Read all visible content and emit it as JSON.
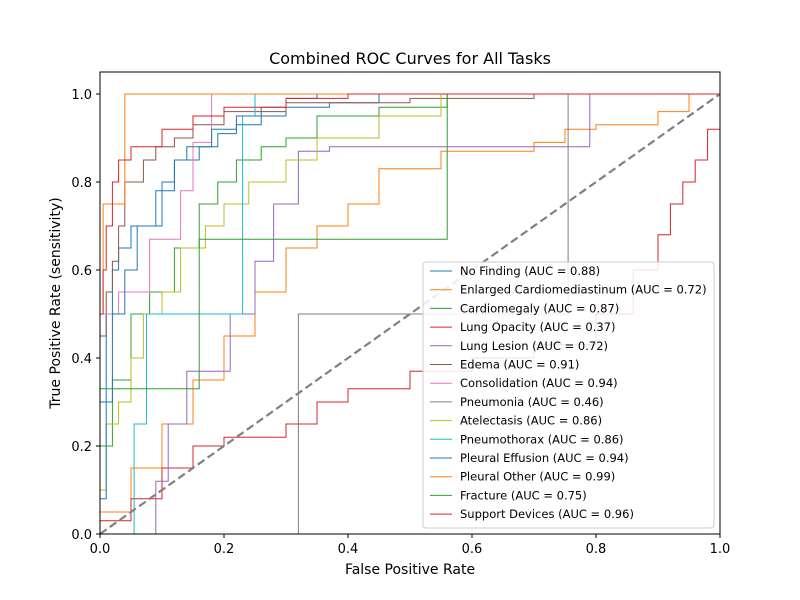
{
  "chart_data": {
    "type": "line",
    "title": "Combined ROC Curves for All Tasks",
    "xlabel": "False Positive Rate",
    "ylabel": "True Positive Rate (sensitivity)",
    "xlim": [
      0,
      1
    ],
    "ylim": [
      0,
      1.05
    ],
    "xticks": [
      "0.0",
      "0.2",
      "0.4",
      "0.6",
      "0.8",
      "1.0"
    ],
    "yticks": [
      "0.0",
      "0.2",
      "0.4",
      "0.6",
      "0.8",
      "1.0"
    ],
    "grid": false,
    "legend_position": "lower-right",
    "diagonal": {
      "x": [
        0,
        1
      ],
      "y": [
        0,
        1
      ],
      "color": "#808080",
      "style": "dashed"
    },
    "series": [
      {
        "name": "No Finding (AUC = 0.88)",
        "color": "#1f77b4",
        "x": [
          0,
          0,
          0.01,
          0.01,
          0.02,
          0.02,
          0.03,
          0.03,
          0.05,
          0.05,
          0.09,
          0.09,
          0.12,
          0.12,
          0.16,
          0.16,
          0.19,
          0.19,
          0.22,
          0.22,
          0.26,
          0.26,
          0.3,
          0.3,
          0.37,
          0.37,
          0.45,
          0.45,
          1
        ],
        "y": [
          0,
          0.3,
          0.3,
          0.5,
          0.5,
          0.6,
          0.6,
          0.65,
          0.65,
          0.7,
          0.7,
          0.78,
          0.78,
          0.85,
          0.85,
          0.88,
          0.88,
          0.91,
          0.91,
          0.93,
          0.93,
          0.95,
          0.95,
          0.97,
          0.97,
          0.98,
          0.98,
          1.0,
          1.0
        ]
      },
      {
        "name": "Enlarged Cardiomediastinum (AUC = 0.72)",
        "color": "#ff7f0e",
        "x": [
          0,
          0,
          0.05,
          0.05,
          0.1,
          0.1,
          0.15,
          0.15,
          0.2,
          0.2,
          0.25,
          0.25,
          0.3,
          0.3,
          0.35,
          0.35,
          0.4,
          0.4,
          0.45,
          0.45,
          0.55,
          0.55,
          0.7,
          0.7,
          0.75,
          0.75,
          0.8,
          0.8,
          0.9,
          0.9,
          0.95,
          0.95,
          1
        ],
        "y": [
          0,
          0.05,
          0.05,
          0.15,
          0.15,
          0.25,
          0.25,
          0.35,
          0.35,
          0.45,
          0.45,
          0.55,
          0.55,
          0.65,
          0.65,
          0.7,
          0.7,
          0.75,
          0.75,
          0.83,
          0.83,
          0.87,
          0.87,
          0.89,
          0.89,
          0.92,
          0.92,
          0.93,
          0.93,
          0.96,
          0.96,
          1.0,
          1.0
        ]
      },
      {
        "name": "Cardiomegaly (AUC = 0.87)",
        "color": "#2ca02c",
        "x": [
          0,
          0,
          0.02,
          0.02,
          0.05,
          0.05,
          0.08,
          0.08,
          0.12,
          0.12,
          0.16,
          0.16,
          0.19,
          0.19,
          0.22,
          0.22,
          0.26,
          0.26,
          0.3,
          0.3,
          0.35,
          0.35,
          0.45,
          0.45,
          0.56,
          0.56,
          1
        ],
        "y": [
          0,
          0.2,
          0.2,
          0.35,
          0.35,
          0.5,
          0.5,
          0.55,
          0.55,
          0.65,
          0.65,
          0.75,
          0.75,
          0.8,
          0.8,
          0.85,
          0.85,
          0.88,
          0.88,
          0.9,
          0.9,
          0.95,
          0.95,
          0.97,
          0.97,
          1.0,
          1.0
        ]
      },
      {
        "name": "Lung Opacity (AUC = 0.37)",
        "color": "#d62728",
        "x": [
          0,
          0,
          0.05,
          0.05,
          0.1,
          0.1,
          0.15,
          0.15,
          0.2,
          0.2,
          0.3,
          0.3,
          0.35,
          0.35,
          0.4,
          0.4,
          0.5,
          0.5,
          0.6,
          0.6,
          0.7,
          0.7,
          0.8,
          0.8,
          0.86,
          0.86,
          0.9,
          0.9,
          0.92,
          0.92,
          0.94,
          0.94,
          0.96,
          0.96,
          0.98,
          0.98,
          1
        ],
        "y": [
          0,
          0.03,
          0.03,
          0.08,
          0.08,
          0.15,
          0.15,
          0.2,
          0.2,
          0.22,
          0.22,
          0.25,
          0.25,
          0.3,
          0.3,
          0.33,
          0.33,
          0.37,
          0.37,
          0.4,
          0.4,
          0.43,
          0.43,
          0.5,
          0.5,
          0.6,
          0.6,
          0.68,
          0.68,
          0.75,
          0.75,
          0.8,
          0.8,
          0.85,
          0.85,
          0.92,
          0.92
        ]
      },
      {
        "name": "Lung Lesion (AUC = 0.72)",
        "color": "#9467bd",
        "x": [
          0,
          0,
          0.09,
          0.09,
          0.11,
          0.11,
          0.14,
          0.14,
          0.21,
          0.21,
          0.25,
          0.25,
          0.28,
          0.28,
          0.32,
          0.32,
          0.37,
          0.37,
          0.79,
          0.79,
          1
        ],
        "y": [
          0,
          0.0,
          0.0,
          0.12,
          0.12,
          0.25,
          0.25,
          0.37,
          0.37,
          0.5,
          0.5,
          0.62,
          0.62,
          0.75,
          0.75,
          0.87,
          0.87,
          0.88,
          0.88,
          1.0,
          1.0
        ]
      },
      {
        "name": "Edema (AUC = 0.91)",
        "color": "#8c564b",
        "x": [
          0,
          0,
          0.01,
          0.01,
          0.02,
          0.02,
          0.03,
          0.03,
          0.04,
          0.04,
          0.07,
          0.07,
          0.09,
          0.09,
          0.12,
          0.12,
          0.15,
          0.15,
          0.2,
          0.2,
          0.3,
          0.3,
          0.5,
          0.5,
          0.7,
          0.7,
          1
        ],
        "y": [
          0,
          0.45,
          0.45,
          0.55,
          0.55,
          0.62,
          0.62,
          0.7,
          0.7,
          0.8,
          0.8,
          0.85,
          0.85,
          0.88,
          0.88,
          0.9,
          0.9,
          0.93,
          0.93,
          0.96,
          0.96,
          0.98,
          0.98,
          0.99,
          0.99,
          1.0,
          1.0
        ]
      },
      {
        "name": "Consolidation (AUC = 0.94)",
        "color": "#e377c2",
        "x": [
          0,
          0,
          0.03,
          0.03,
          0.08,
          0.08,
          0.13,
          0.13,
          0.15,
          0.15,
          0.18,
          0.18,
          1
        ],
        "y": [
          0,
          0.5,
          0.5,
          0.55,
          0.55,
          0.67,
          0.67,
          0.78,
          0.78,
          0.89,
          0.89,
          1.0,
          1.0
        ]
      },
      {
        "name": "Pneumonia (AUC = 0.46)",
        "color": "#7f7f7f",
        "x": [
          0,
          0.32,
          0.32,
          0.755,
          0.755,
          1
        ],
        "y": [
          0,
          0,
          0.5,
          0.5,
          1.0,
          1.0
        ]
      },
      {
        "name": "Atelectasis (AUC = 0.86)",
        "color": "#bcbd22",
        "x": [
          0,
          0,
          0.01,
          0.01,
          0.03,
          0.03,
          0.05,
          0.05,
          0.07,
          0.07,
          0.1,
          0.1,
          0.13,
          0.13,
          0.17,
          0.17,
          0.2,
          0.2,
          0.24,
          0.24,
          0.3,
          0.3,
          0.35,
          0.35,
          0.45,
          0.45,
          0.55,
          0.55,
          1
        ],
        "y": [
          0,
          0.1,
          0.1,
          0.25,
          0.25,
          0.3,
          0.3,
          0.4,
          0.4,
          0.5,
          0.5,
          0.55,
          0.55,
          0.65,
          0.65,
          0.7,
          0.7,
          0.75,
          0.75,
          0.8,
          0.8,
          0.85,
          0.85,
          0.9,
          0.9,
          0.95,
          0.95,
          1.0,
          1.0
        ]
      },
      {
        "name": "Pneumothorax (AUC = 0.86)",
        "color": "#17becf",
        "x": [
          0,
          0.055,
          0.055,
          0.075,
          0.075,
          0.23,
          0.23,
          0.25,
          0.25,
          1
        ],
        "y": [
          0,
          0,
          0.25,
          0.25,
          0.5,
          0.5,
          0.95,
          0.95,
          1.0,
          1.0
        ]
      },
      {
        "name": "Pleural Effusion (AUC = 0.94)",
        "color": "#1f77b4",
        "x": [
          0,
          0,
          0.01,
          0.01,
          0.02,
          0.02,
          0.04,
          0.04,
          0.06,
          0.06,
          0.1,
          0.1,
          0.12,
          0.12,
          0.14,
          0.14,
          0.18,
          0.18,
          0.22,
          0.22,
          0.26,
          0.26,
          0.3,
          0.3,
          0.35,
          0.35,
          1
        ],
        "y": [
          0,
          0.08,
          0.08,
          0.3,
          0.3,
          0.5,
          0.5,
          0.6,
          0.6,
          0.7,
          0.7,
          0.8,
          0.8,
          0.85,
          0.85,
          0.88,
          0.88,
          0.92,
          0.92,
          0.95,
          0.95,
          0.97,
          0.97,
          0.99,
          0.99,
          1.0,
          1.0
        ]
      },
      {
        "name": "Pleural Other (AUC = 0.99)",
        "color": "#ff7f0e",
        "x": [
          0,
          0,
          0.005,
          0.005,
          0.04,
          0.04,
          1
        ],
        "y": [
          0,
          0.5,
          0.5,
          0.75,
          0.75,
          1.0,
          1.0
        ]
      },
      {
        "name": "Fracture (AUC = 0.75)",
        "color": "#2ca02c",
        "x": [
          0,
          0,
          0.03,
          0.03,
          0.16,
          0.16,
          0.56,
          0.56,
          1
        ],
        "y": [
          0,
          0.33,
          0.33,
          0.33,
          0.33,
          0.67,
          0.67,
          1.0,
          1.0
        ]
      },
      {
        "name": "Support Devices (AUC = 0.96)",
        "color": "#d62728",
        "x": [
          0,
          0,
          0.005,
          0.005,
          0.01,
          0.01,
          0.02,
          0.02,
          0.03,
          0.03,
          0.05,
          0.05,
          0.1,
          0.1,
          0.15,
          0.15,
          0.2,
          0.2,
          0.3,
          0.3,
          0.4,
          0.4,
          1
        ],
        "y": [
          0,
          0.5,
          0.5,
          0.6,
          0.6,
          0.7,
          0.7,
          0.8,
          0.8,
          0.85,
          0.85,
          0.88,
          0.88,
          0.92,
          0.92,
          0.95,
          0.95,
          0.97,
          0.97,
          0.99,
          0.99,
          1.0,
          1.0
        ]
      }
    ]
  }
}
